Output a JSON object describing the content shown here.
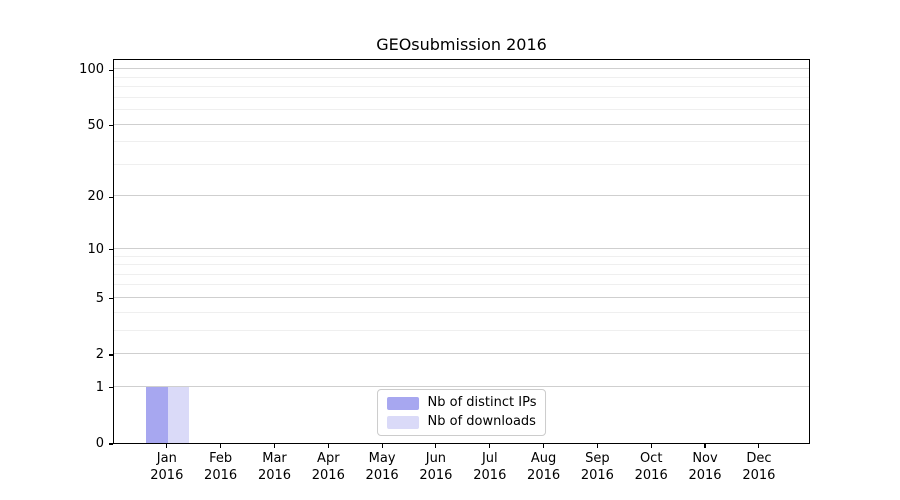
{
  "figure": {
    "background": "#ffffff"
  },
  "chart_data": {
    "type": "bar",
    "title": "GEOsubmission 2016",
    "categories": [
      "Jan",
      "Feb",
      "Mar",
      "Apr",
      "May",
      "Jun",
      "Jul",
      "Aug",
      "Sep",
      "Oct",
      "Nov",
      "Dec"
    ],
    "category_sublabel": "2016",
    "series": [
      {
        "name": "Nb of distinct IPs",
        "color": "#a7a7f0",
        "values": [
          1,
          0,
          0,
          0,
          0,
          0,
          0,
          0,
          0,
          0,
          0,
          0
        ]
      },
      {
        "name": "Nb of downloads",
        "color": "#dadaf8",
        "values": [
          1,
          0,
          0,
          0,
          0,
          0,
          0,
          0,
          0,
          0,
          0,
          0
        ]
      }
    ],
    "xlabel": "",
    "ylabel": "",
    "yscale": "log1p",
    "ylim": [
      0,
      115
    ],
    "yticks": [
      0,
      1,
      2,
      5,
      10,
      20,
      50,
      100
    ],
    "yticks_minor": [
      3,
      4,
      6,
      7,
      8,
      9,
      30,
      40,
      60,
      70,
      80,
      90
    ],
    "grid": "both",
    "legend_position": "lower center"
  },
  "colors": {
    "axis": "#000000",
    "grid_major": "#cfcfcf",
    "grid_minor": "#efefef",
    "legend_border": "#cccccc",
    "legend_bg": "#ffffff",
    "text": "#000000"
  }
}
